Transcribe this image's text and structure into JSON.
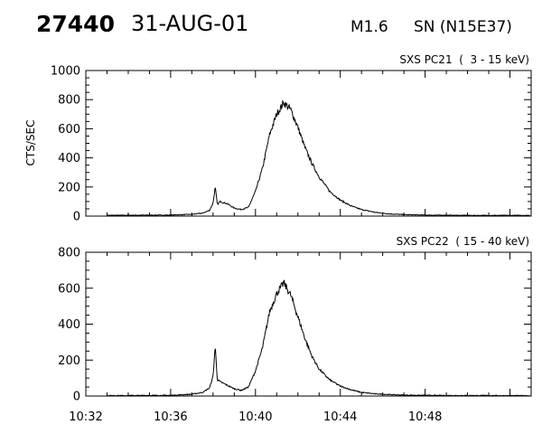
{
  "header": {
    "event_id": "27440",
    "date": "31-AUG-01",
    "flare_class": "M1.6",
    "location": "SN (N15E37)"
  },
  "chart_data": [
    {
      "type": "line",
      "title": "SXS PC21  (  3 - 15 keV)",
      "ylabel": "CTS/SEC",
      "xlabel": "",
      "xlim": [
        "10:32",
        "10:53"
      ],
      "ylim": [
        0,
        1000
      ],
      "yticks": [
        0,
        200,
        400,
        600,
        800,
        1000
      ],
      "x": [
        "10:32:00",
        "10:34:00",
        "10:36:00",
        "10:37:00",
        "10:37:30",
        "10:37:50",
        "10:38:00",
        "10:38:06",
        "10:38:12",
        "10:38:20",
        "10:38:40",
        "10:39:00",
        "10:39:20",
        "10:39:40",
        "10:40:00",
        "10:40:20",
        "10:40:40",
        "10:41:00",
        "10:41:20",
        "10:41:40",
        "10:42:00",
        "10:42:20",
        "10:42:40",
        "10:43:00",
        "10:43:30",
        "10:44:00",
        "10:44:30",
        "10:45:00",
        "10:45:40",
        "10:46:20",
        "10:47:00",
        "10:48:00",
        "10:49:00",
        "10:50:00",
        "10:51:00",
        "10:52:00",
        "10:53:00"
      ],
      "series": [
        {
          "values": [
            5,
            6,
            7,
            12,
            20,
            40,
            90,
            200,
            80,
            100,
            85,
            55,
            45,
            60,
            170,
            330,
            560,
            700,
            780,
            730,
            610,
            470,
            360,
            270,
            170,
            110,
            70,
            45,
            25,
            15,
            10,
            7,
            6,
            5,
            5,
            5,
            5
          ]
        }
      ]
    },
    {
      "type": "line",
      "title": "SXS PC22  ( 15 - 40 keV)",
      "ylabel": "",
      "xlabel": "",
      "xlim": [
        "10:32",
        "10:53"
      ],
      "ylim": [
        0,
        800
      ],
      "yticks": [
        0,
        200,
        400,
        600,
        800
      ],
      "xticks": [
        "10:32",
        "10:36",
        "10:40",
        "10:44",
        "10:48"
      ],
      "x": [
        "10:32:00",
        "10:34:00",
        "10:36:00",
        "10:37:00",
        "10:37:30",
        "10:37:50",
        "10:38:00",
        "10:38:06",
        "10:38:12",
        "10:38:20",
        "10:38:40",
        "10:39:00",
        "10:39:20",
        "10:39:40",
        "10:40:00",
        "10:40:20",
        "10:40:40",
        "10:41:00",
        "10:41:20",
        "10:41:40",
        "10:42:00",
        "10:42:20",
        "10:42:40",
        "10:43:00",
        "10:43:30",
        "10:44:00",
        "10:44:30",
        "10:45:00",
        "10:45:40",
        "10:46:20",
        "10:47:00",
        "10:48:00",
        "10:49:00",
        "10:50:00",
        "10:51:00",
        "10:52:00",
        "10:53:00"
      ],
      "series": [
        {
          "values": [
            2,
            3,
            4,
            10,
            20,
            45,
            110,
            280,
            90,
            80,
            60,
            40,
            32,
            50,
            140,
            270,
            470,
            570,
            630,
            560,
            440,
            320,
            220,
            150,
            90,
            55,
            35,
            20,
            12,
            8,
            5,
            4,
            3,
            3,
            3,
            2,
            2
          ]
        }
      ]
    }
  ]
}
